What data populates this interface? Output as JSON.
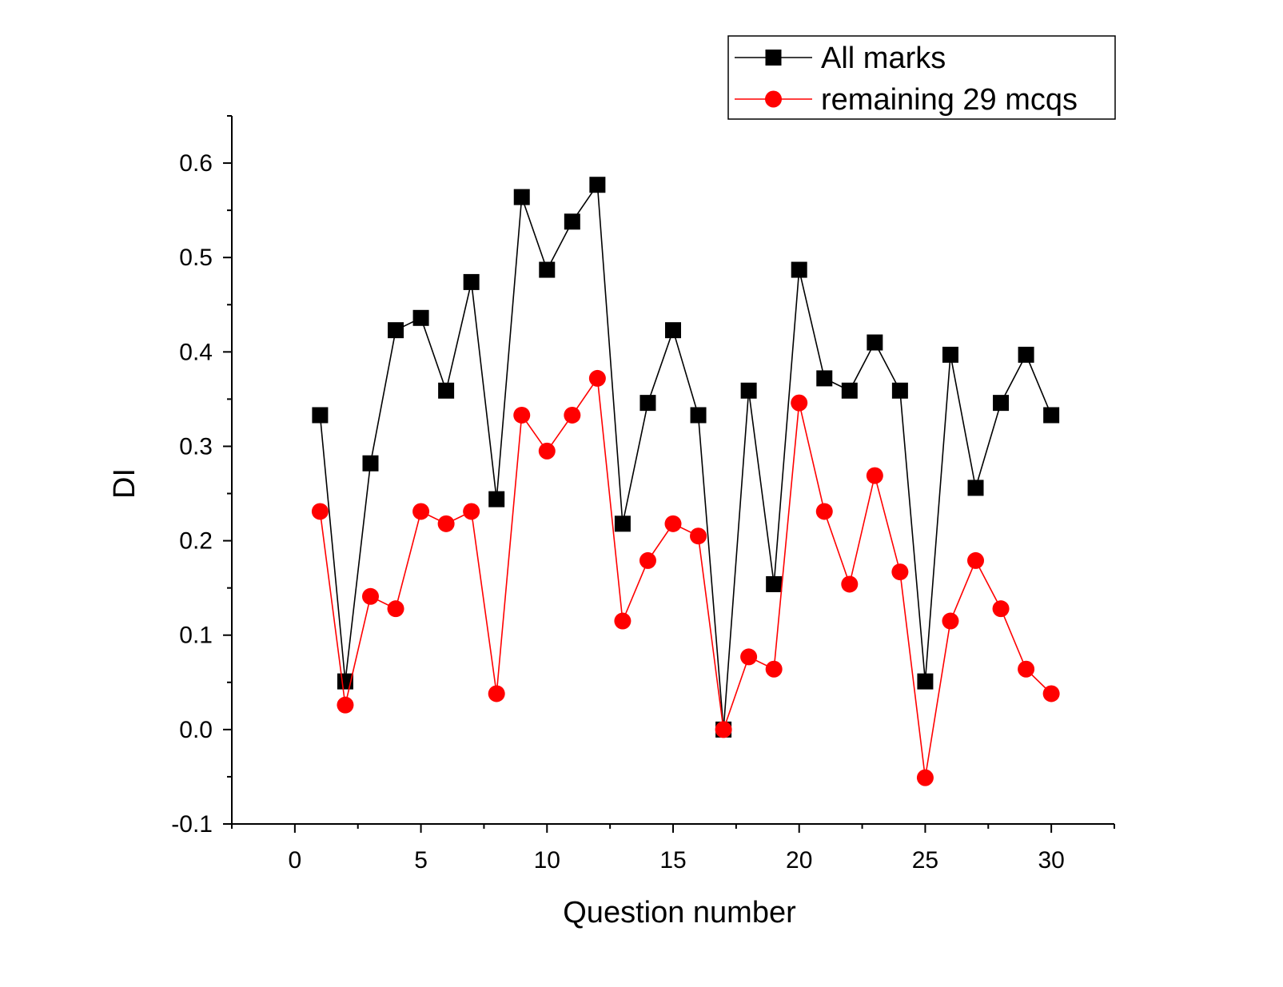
{
  "chart_data": {
    "type": "line",
    "xlabel": "Question number",
    "ylabel": "DI",
    "xlim": [
      -2.5,
      32.5
    ],
    "ylim": [
      -0.1,
      0.65
    ],
    "x_ticks": [
      0,
      5,
      10,
      15,
      20,
      25,
      30
    ],
    "x_tick_labels": [
      "0",
      "5",
      "10",
      "15",
      "20",
      "25",
      "30"
    ],
    "y_ticks": [
      -0.1,
      0.0,
      0.1,
      0.2,
      0.3,
      0.4,
      0.5,
      0.6
    ],
    "y_tick_labels": [
      "-0.1",
      "0.0",
      "0.1",
      "0.2",
      "0.3",
      "0.4",
      "0.5",
      "0.6"
    ],
    "grid": false,
    "legend_position": "top-right",
    "x": [
      1,
      2,
      3,
      4,
      5,
      6,
      7,
      8,
      9,
      10,
      11,
      12,
      13,
      14,
      15,
      16,
      17,
      18,
      19,
      20,
      21,
      22,
      23,
      24,
      25,
      26,
      27,
      28,
      29,
      30
    ],
    "series": [
      {
        "name": "All marks",
        "color": "#000000",
        "marker": "square",
        "values": [
          0.333,
          0.051,
          0.282,
          0.423,
          0.436,
          0.359,
          0.474,
          0.244,
          0.564,
          0.487,
          0.538,
          0.577,
          0.218,
          0.346,
          0.423,
          0.333,
          0.0,
          0.359,
          0.154,
          0.487,
          0.372,
          0.359,
          0.41,
          0.359,
          0.051,
          0.397,
          0.256,
          0.346,
          0.397,
          0.333
        ]
      },
      {
        "name": "remaining 29 mcqs",
        "color": "#ff0000",
        "marker": "circle",
        "values": [
          0.231,
          0.026,
          0.141,
          0.128,
          0.231,
          0.218,
          0.231,
          0.038,
          0.333,
          0.295,
          0.333,
          0.372,
          0.115,
          0.179,
          0.218,
          0.205,
          0.0,
          0.077,
          0.064,
          0.346,
          0.231,
          0.154,
          0.269,
          0.167,
          -0.051,
          0.115,
          0.179,
          0.128,
          0.064,
          0.038
        ]
      }
    ]
  }
}
